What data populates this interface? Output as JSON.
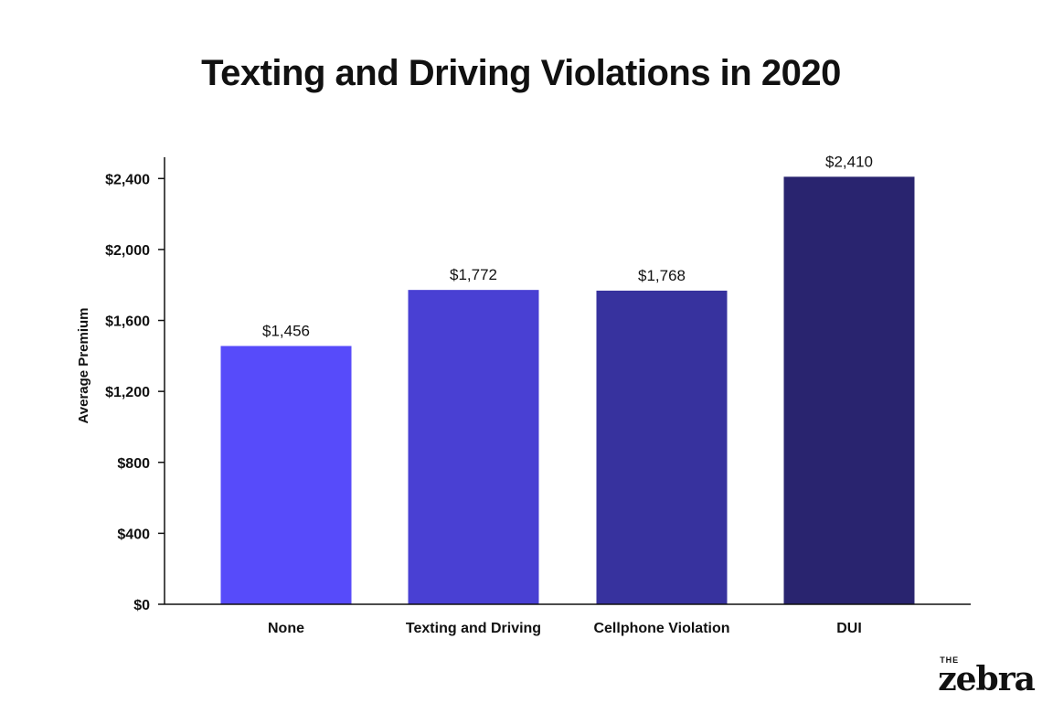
{
  "chart_data": {
    "type": "bar",
    "title": "Texting and Driving Violations in 2020",
    "xlabel": "",
    "ylabel": "Average Premium",
    "categories": [
      "None",
      "Texting and Driving",
      "Cellphone Violation",
      "DUI"
    ],
    "values": [
      1456,
      1772,
      1768,
      2410
    ],
    "value_labels": [
      "$1,456",
      "$1,772",
      "$1,768",
      "$2,410"
    ],
    "bar_colors": [
      "#574bfa",
      "#4940d3",
      "#37329e",
      "#29246f"
    ],
    "ylim": [
      0,
      2520
    ],
    "yticks": [
      0,
      400,
      800,
      1200,
      1600,
      2000,
      2400
    ],
    "ytick_labels": [
      "$0",
      "$400",
      "$800",
      "$1,200",
      "$1,600",
      "$2,000",
      "$2,400"
    ],
    "grid": false,
    "legend": "none"
  },
  "brand": {
    "the": "THE",
    "name": "zebra"
  }
}
